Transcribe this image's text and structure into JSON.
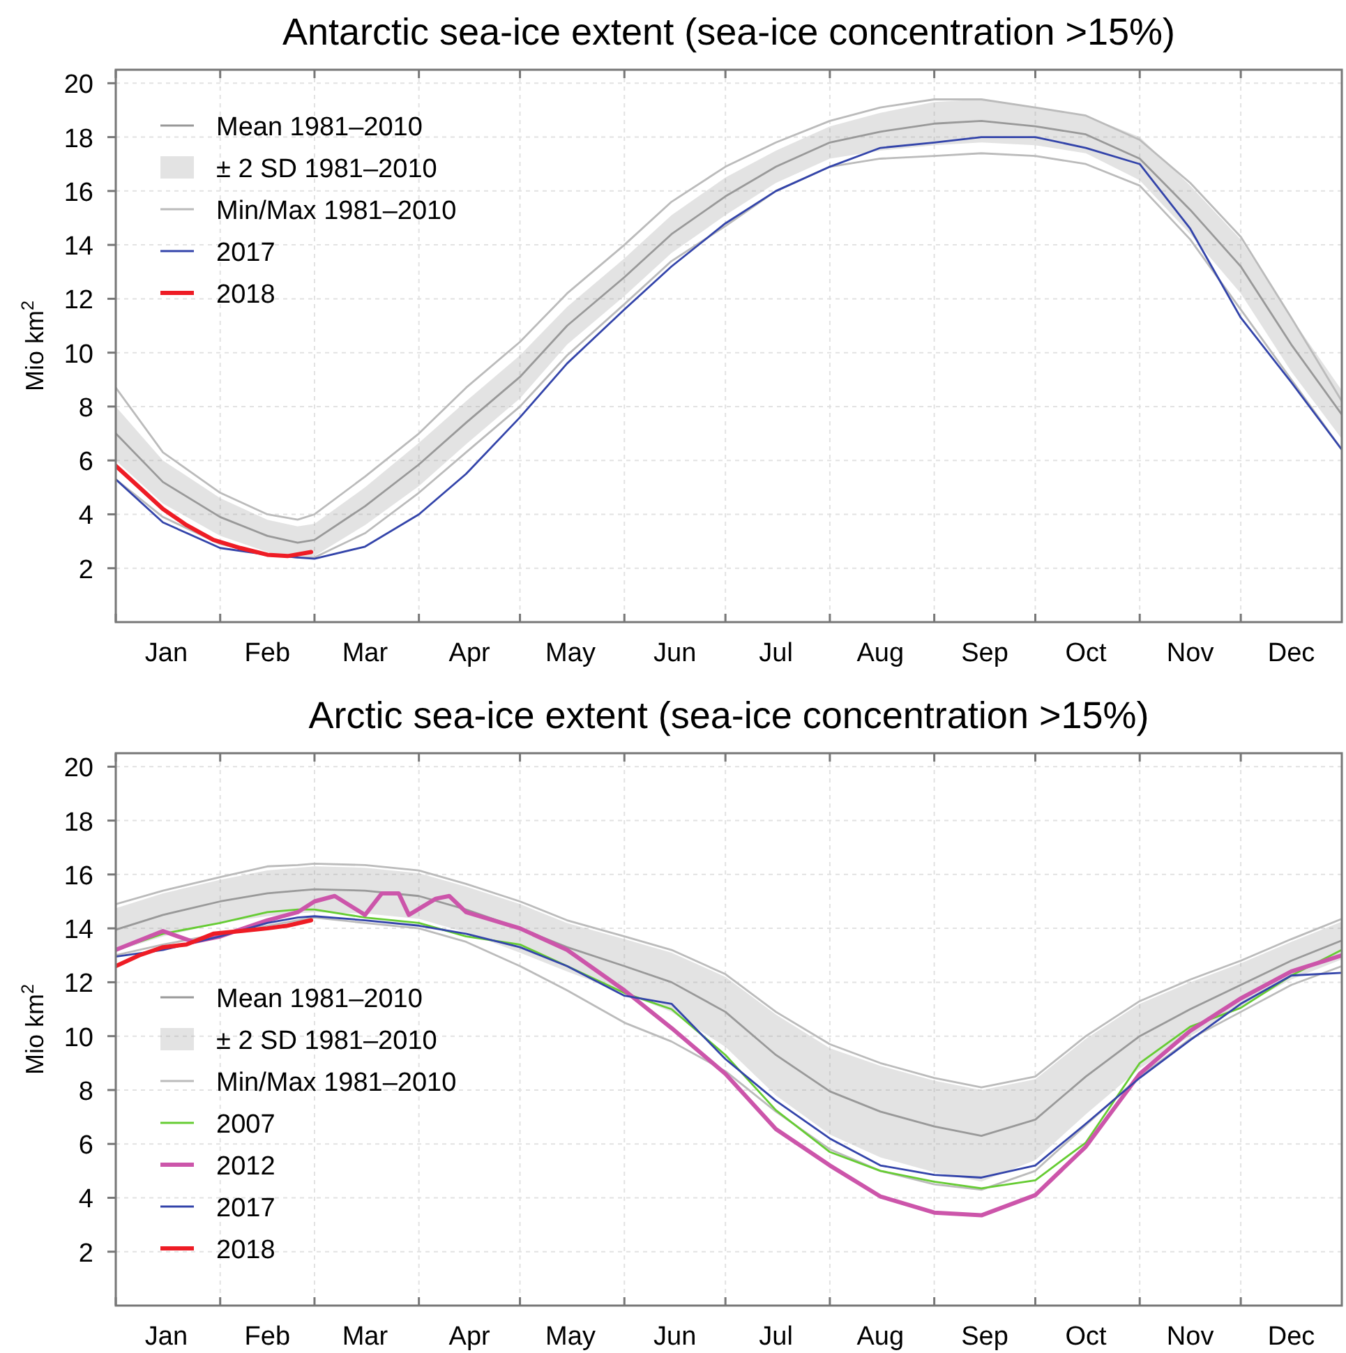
{
  "chart_data": [
    {
      "type": "line",
      "title": "Antarctic sea-ice extent (sea-ice concentration >15%)",
      "ylabel": "Mio km$^{2}$",
      "x": [
        "--01-01",
        "--01-15",
        "--02-01",
        "--02-15",
        "--02-24",
        "--03-01",
        "--03-16",
        "--04-01",
        "--04-15",
        "--05-01",
        "--05-15",
        "--06-01",
        "--06-15",
        "--07-01",
        "--07-16",
        "--08-01",
        "--08-16",
        "--09-01",
        "--09-15",
        "--10-01",
        "--10-16",
        "--11-01",
        "--11-16",
        "--12-01",
        "--12-16",
        "--12-31"
      ],
      "xlim": [
        "--01-01",
        "--12-31"
      ],
      "ylim": [
        0,
        20.5
      ],
      "xticks": [
        {
          "value": "--01-01",
          "label": null
        },
        {
          "value": "--02-01",
          "label": null
        },
        {
          "value": "--03-01",
          "label": null
        },
        {
          "value": "--04-01",
          "label": null
        },
        {
          "value": "--05-01",
          "label": null
        },
        {
          "value": "--06-01",
          "label": null
        },
        {
          "value": "--07-01",
          "label": null
        },
        {
          "value": "--08-01",
          "label": null
        },
        {
          "value": "--09-01",
          "label": null
        },
        {
          "value": "--10-01",
          "label": null
        },
        {
          "value": "--11-01",
          "label": null
        },
        {
          "value": "--12-01",
          "label": null
        },
        {
          "value": "--01-16",
          "label": "Jan"
        },
        {
          "value": "--02-15",
          "label": "Feb"
        },
        {
          "value": "--03-16",
          "label": "Mar"
        },
        {
          "value": "--04-16",
          "label": "Apr"
        },
        {
          "value": "--05-16",
          "label": "May"
        },
        {
          "value": "--06-16",
          "label": "Jun"
        },
        {
          "value": "--07-16",
          "label": "Jul"
        },
        {
          "value": "--08-16",
          "label": "Aug"
        },
        {
          "value": "--09-16",
          "label": "Sep"
        },
        {
          "value": "--10-16",
          "label": "Oct"
        },
        {
          "value": "--11-16",
          "label": "Nov"
        },
        {
          "value": "--12-16",
          "label": "Dec"
        }
      ],
      "yticks": [
        2,
        4,
        6,
        8,
        10,
        12,
        14,
        16,
        18,
        20
      ],
      "grid": true,
      "legend": "top left",
      "annotations": [
        "± 2 SD 1981–2010"
      ],
      "series": [
        {
          "name": "Mean 1981–2010",
          "color": "#999999",
          "values": [
            7.0,
            5.2,
            3.9,
            3.2,
            2.95,
            3.05,
            4.3,
            5.85,
            7.4,
            9.1,
            11.0,
            12.8,
            14.4,
            15.8,
            16.9,
            17.8,
            18.2,
            18.5,
            18.6,
            18.4,
            18.1,
            17.2,
            15.3,
            13.2,
            10.3,
            7.7
          ],
          "lower": [
            6.0,
            4.4,
            3.2,
            2.6,
            2.35,
            2.45,
            3.6,
            5.05,
            6.6,
            8.3,
            10.3,
            12.1,
            13.7,
            15.1,
            16.3,
            17.2,
            17.5,
            17.7,
            17.8,
            17.7,
            17.4,
            16.4,
            14.4,
            12.2,
            9.3,
            6.8
          ],
          "upper": [
            8.0,
            6.0,
            4.6,
            3.8,
            3.55,
            3.65,
            5.0,
            6.65,
            8.2,
            9.9,
            11.7,
            13.5,
            15.1,
            16.5,
            17.5,
            18.4,
            18.9,
            19.3,
            19.4,
            19.1,
            18.8,
            18.0,
            16.2,
            14.2,
            11.3,
            8.6
          ]
        },
        {
          "name": "Min/Max 1981–2010",
          "color": "#bbbbbb",
          "values": [
            8.7,
            6.3,
            4.8,
            4.0,
            3.8,
            4.0,
            5.4,
            7.0,
            8.7,
            10.4,
            12.2,
            14.0,
            15.6,
            16.9,
            17.8,
            18.6,
            19.1,
            19.4,
            19.4,
            19.1,
            18.8,
            17.9,
            16.3,
            14.3,
            11.3,
            8.2
          ]
        },
        {
          "color": "#bbbbbb",
          "values": [
            5.3,
            3.9,
            2.9,
            2.5,
            2.4,
            2.4,
            3.3,
            4.8,
            6.3,
            8.0,
            9.9,
            11.8,
            13.4,
            14.7,
            16.0,
            16.9,
            17.2,
            17.3,
            17.4,
            17.3,
            17.0,
            16.2,
            14.2,
            11.6,
            9.0,
            6.4
          ]
        },
        {
          "name": "2017",
          "color": "#3344aa",
          "values": [
            5.3,
            3.7,
            2.75,
            2.5,
            2.4,
            2.35,
            2.8,
            4.0,
            5.5,
            7.6,
            9.6,
            11.6,
            13.2,
            14.8,
            16.0,
            16.9,
            17.6,
            17.8,
            18.0,
            18.0,
            17.6,
            17.0,
            14.6,
            11.3,
            8.9,
            6.4
          ]
        },
        {
          "name": "2018",
          "color": "#ee1c25",
          "x": [
            "--01-01",
            "--01-08",
            "--01-15",
            "--01-22",
            "--01-30",
            "--02-07",
            "--02-15",
            "--02-21",
            "--02-28"
          ],
          "values": [
            5.8,
            5.0,
            4.2,
            3.6,
            3.05,
            2.75,
            2.5,
            2.45,
            2.6
          ]
        }
      ]
    },
    {
      "type": "line",
      "title": "Arctic sea-ice extent (sea-ice concentration >15%)",
      "ylabel": "Mio km$^{2}$",
      "x": [
        "--01-01",
        "--01-15",
        "--02-01",
        "--02-15",
        "--02-24",
        "--03-01",
        "--03-16",
        "--04-01",
        "--04-15",
        "--05-01",
        "--05-15",
        "--06-01",
        "--06-15",
        "--07-01",
        "--07-16",
        "--08-01",
        "--08-16",
        "--09-01",
        "--09-15",
        "--10-01",
        "--10-16",
        "--11-01",
        "--11-16",
        "--12-01",
        "--12-16",
        "--12-31"
      ],
      "xlim": [
        "--01-01",
        "--12-31"
      ],
      "ylim": [
        0,
        20.5
      ],
      "xticks": [
        {
          "value": "--01-01",
          "label": null
        },
        {
          "value": "--02-01",
          "label": null
        },
        {
          "value": "--03-01",
          "label": null
        },
        {
          "value": "--04-01",
          "label": null
        },
        {
          "value": "--05-01",
          "label": null
        },
        {
          "value": "--06-01",
          "label": null
        },
        {
          "value": "--07-01",
          "label": null
        },
        {
          "value": "--08-01",
          "label": null
        },
        {
          "value": "--09-01",
          "label": null
        },
        {
          "value": "--10-01",
          "label": null
        },
        {
          "value": "--11-01",
          "label": null
        },
        {
          "value": "--12-01",
          "label": null
        },
        {
          "value": "--01-16",
          "label": "Jan"
        },
        {
          "value": "--02-15",
          "label": "Feb"
        },
        {
          "value": "--03-16",
          "label": "Mar"
        },
        {
          "value": "--04-16",
          "label": "Apr"
        },
        {
          "value": "--05-16",
          "label": "May"
        },
        {
          "value": "--06-16",
          "label": "Jun"
        },
        {
          "value": "--07-16",
          "label": "Jul"
        },
        {
          "value": "--08-16",
          "label": "Aug"
        },
        {
          "value": "--09-16",
          "label": "Sep"
        },
        {
          "value": "--10-16",
          "label": "Oct"
        },
        {
          "value": "--11-16",
          "label": "Nov"
        },
        {
          "value": "--12-16",
          "label": "Dec"
        }
      ],
      "yticks": [
        2,
        4,
        6,
        8,
        10,
        12,
        14,
        16,
        18,
        20
      ],
      "grid": true,
      "legend": "left",
      "annotations": [
        "± 2 SD 1981–2010"
      ],
      "series": [
        {
          "name": "Mean 1981–2010",
          "color": "#999999",
          "values": [
            13.95,
            14.5,
            15.0,
            15.3,
            15.4,
            15.45,
            15.4,
            15.2,
            14.7,
            14.0,
            13.3,
            12.6,
            12.0,
            10.9,
            9.3,
            7.95,
            7.2,
            6.65,
            6.3,
            6.9,
            8.5,
            10.0,
            11.0,
            11.9,
            12.8,
            13.55
          ],
          "lower": [
            13.15,
            13.7,
            14.2,
            14.45,
            14.55,
            14.6,
            14.55,
            14.35,
            13.85,
            13.1,
            12.4,
            11.6,
            10.9,
            9.6,
            7.8,
            6.35,
            5.5,
            4.95,
            4.6,
            5.4,
            7.1,
            8.8,
            10.0,
            11.1,
            12.1,
            12.85
          ],
          "upper": [
            14.75,
            15.3,
            15.8,
            16.15,
            16.25,
            16.3,
            16.25,
            16.05,
            15.55,
            14.9,
            14.2,
            13.6,
            13.1,
            12.2,
            10.8,
            9.55,
            8.9,
            8.35,
            8.0,
            8.4,
            9.9,
            11.2,
            12.0,
            12.7,
            13.5,
            14.25
          ]
        },
        {
          "name": "Min/Max 1981–2010",
          "color": "#bbbbbb",
          "values": [
            14.9,
            15.4,
            15.9,
            16.3,
            16.35,
            16.4,
            16.35,
            16.15,
            15.65,
            15.0,
            14.3,
            13.7,
            13.2,
            12.3,
            10.9,
            9.7,
            9.0,
            8.45,
            8.1,
            8.5,
            10.0,
            11.3,
            12.1,
            12.8,
            13.6,
            14.35
          ]
        },
        {
          "color": "#bbbbbb",
          "values": [
            13.0,
            13.4,
            13.8,
            14.1,
            14.3,
            14.4,
            14.2,
            14.0,
            13.5,
            12.6,
            11.7,
            10.5,
            9.8,
            8.7,
            7.2,
            5.8,
            5.0,
            4.5,
            4.3,
            5.0,
            6.7,
            8.5,
            9.9,
            10.9,
            11.9,
            12.6
          ]
        },
        {
          "name": "2007",
          "color": "#66cc33",
          "values": [
            13.2,
            13.8,
            14.2,
            14.6,
            14.7,
            14.7,
            14.4,
            14.2,
            13.7,
            13.4,
            12.6,
            11.6,
            11.0,
            9.3,
            7.25,
            5.7,
            5.0,
            4.6,
            4.35,
            4.65,
            6.05,
            9.0,
            10.35,
            11.05,
            12.25,
            13.2
          ]
        },
        {
          "name": "2012",
          "color": "#cc55aa",
          "x": [
            "--01-01",
            "--01-15",
            "--01-24",
            "--02-01",
            "--02-15",
            "--02-24",
            "--03-01",
            "--03-07",
            "--03-16",
            "--03-21",
            "--03-26",
            "--03-29",
            "--04-06",
            "--04-10",
            "--04-15",
            "--05-01",
            "--05-15",
            "--06-01",
            "--06-15",
            "--07-01",
            "--07-16",
            "--08-01",
            "--08-16",
            "--09-01",
            "--09-15",
            "--10-01",
            "--10-16",
            "--11-01",
            "--11-16",
            "--12-01",
            "--12-16",
            "--12-31"
          ],
          "values": [
            13.2,
            13.9,
            13.5,
            13.7,
            14.3,
            14.6,
            15.0,
            15.2,
            14.5,
            15.3,
            15.3,
            14.5,
            15.1,
            15.2,
            14.6,
            14.0,
            13.2,
            11.7,
            10.3,
            8.6,
            6.55,
            5.2,
            4.05,
            3.45,
            3.35,
            4.1,
            5.9,
            8.6,
            10.2,
            11.4,
            12.4,
            13.0
          ]
        },
        {
          "name": "2017",
          "color": "#3344aa",
          "values": [
            12.95,
            13.2,
            13.7,
            14.2,
            14.4,
            14.45,
            14.3,
            14.1,
            13.8,
            13.3,
            12.6,
            11.5,
            11.2,
            9.15,
            7.6,
            6.2,
            5.2,
            4.85,
            4.75,
            5.2,
            6.75,
            8.45,
            9.85,
            11.2,
            12.25,
            12.35
          ]
        },
        {
          "name": "2018",
          "color": "#ee1c25",
          "x": [
            "--01-01",
            "--01-08",
            "--01-15",
            "--01-22",
            "--01-30",
            "--02-07",
            "--02-15",
            "--02-21",
            "--02-28"
          ],
          "values": [
            12.6,
            13.0,
            13.3,
            13.4,
            13.8,
            13.9,
            14.0,
            14.1,
            14.3
          ]
        }
      ]
    }
  ]
}
